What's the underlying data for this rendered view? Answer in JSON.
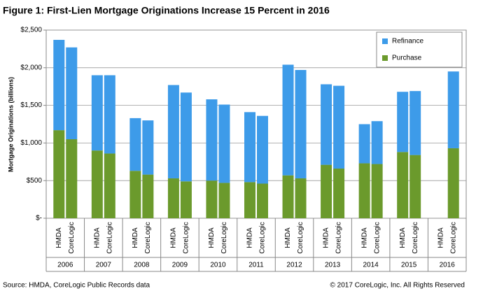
{
  "chart_data": {
    "type": "stacked_bar",
    "title": "Figure 1: First-Lien Mortgage Originations Increase 15 Percent in 2016",
    "y_label": "Mortgage Originations (billions)",
    "groups": [
      "2006",
      "2007",
      "2008",
      "2009",
      "2010",
      "2011",
      "2012",
      "2013",
      "2014",
      "2015",
      "2016"
    ],
    "categories": [
      "HMDA",
      "CoreLogic",
      "HMDA",
      "CoreLogic",
      "HMDA",
      "CoreLogic",
      "HMDA",
      "CoreLogic",
      "HMDA",
      "CoreLogic",
      "HMDA",
      "CoreLogic",
      "HMDA",
      "CoreLogic",
      "HMDA",
      "CoreLogic",
      "HMDA",
      "CoreLogic",
      "HMDA",
      "CoreLogic",
      "HMDA",
      "CoreLogic"
    ],
    "series": [
      {
        "name": "Purchase",
        "color": "#6b9a2c",
        "values": [
          1170,
          1050,
          900,
          860,
          630,
          580,
          530,
          490,
          500,
          470,
          480,
          460,
          570,
          530,
          710,
          660,
          730,
          720,
          880,
          840,
          null,
          930
        ]
      },
      {
        "name": "Refinance",
        "color": "#3d9be9",
        "values": [
          1200,
          1220,
          1000,
          1040,
          700,
          720,
          1240,
          1180,
          1080,
          1040,
          930,
          900,
          1470,
          1440,
          1070,
          1100,
          520,
          570,
          800,
          850,
          null,
          1020
        ]
      }
    ],
    "ylim": [
      0,
      2500
    ],
    "yticks": [
      {
        "value": 0,
        "label": "$-"
      },
      {
        "value": 500,
        "label": "$500"
      },
      {
        "value": 1000,
        "label": "$1,000"
      },
      {
        "value": 1500,
        "label": "$1,500"
      },
      {
        "value": 2000,
        "label": "$2,000"
      },
      {
        "value": 2500,
        "label": "$2,500"
      }
    ],
    "grid": true,
    "legend": "top-right",
    "source": "Source: HMDA, CoreLogic Public Records data",
    "copyright": "© 2017 CoreLogic, Inc. All Rights Reserved"
  }
}
